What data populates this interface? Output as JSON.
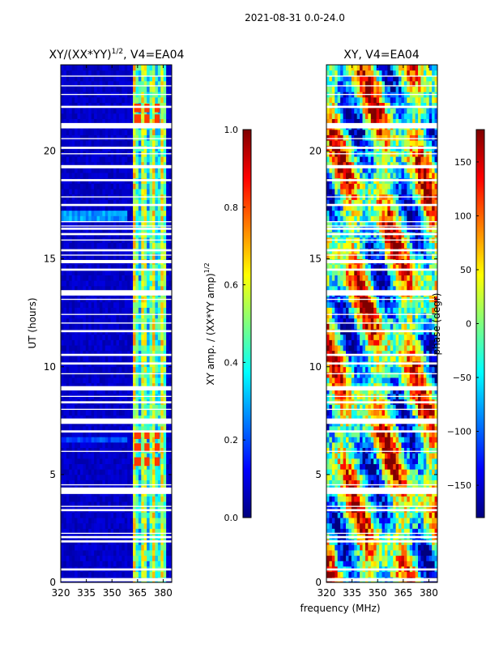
{
  "suptitle": "2021-08-31 0.0-24.0",
  "chart_data": [
    {
      "type": "heatmap",
      "title_main": "XY/(XX*YY)",
      "title_sup": "1/2",
      "title_rest": ", V4=EA04",
      "ylabel": "UT (hours)",
      "xlim": [
        320,
        385
      ],
      "ylim": [
        0,
        24
      ],
      "xticks": [
        "320",
        "335",
        "350",
        "365",
        "380"
      ],
      "xtick_values": [
        320,
        335,
        350,
        365,
        380
      ],
      "yticks": [
        "0",
        "5",
        "10",
        "15",
        "20"
      ],
      "ytick_values": [
        0,
        5,
        10,
        15,
        20
      ],
      "colorbar": {
        "label_main": "XY amp. / (XX*YY amp)",
        "label_sup": "1/2",
        "range": [
          0.0,
          1.0
        ],
        "ticks": [
          "0.0",
          "0.2",
          "0.4",
          "0.6",
          "0.8",
          "1.0"
        ],
        "tick_values": [
          0.0,
          0.2,
          0.4,
          0.6,
          0.8,
          1.0
        ]
      }
    },
    {
      "type": "heatmap",
      "title": "XY, V4=EA04",
      "xlim": [
        320,
        385
      ],
      "ylim": [
        0,
        24
      ],
      "xticks": [
        "320",
        "335",
        "350",
        "365",
        "380"
      ],
      "xtick_values": [
        320,
        335,
        350,
        365,
        380
      ],
      "yticks": [
        "0",
        "5",
        "10",
        "15",
        "20"
      ],
      "ytick_values": [
        0,
        5,
        10,
        15,
        20
      ],
      "colorbar": {
        "label": "phase (degr)",
        "range": [
          -180,
          180
        ],
        "ticks": [
          "−150",
          "−100",
          "−50",
          "0",
          "50",
          "100",
          "150"
        ],
        "tick_values": [
          -150,
          -100,
          -50,
          0,
          50,
          100,
          150
        ]
      }
    }
  ],
  "xlabel_shared": "frequency (MHz)",
  "colormap": [
    "#00007f",
    "#0000ff",
    "#007fff",
    "#00ffff",
    "#7fff7f",
    "#ffff00",
    "#ff7f00",
    "#ff0000",
    "#7f0000"
  ],
  "flagged_bands_hours": [
    [
      0.05,
      0.2
    ],
    [
      0.55,
      0.65
    ],
    [
      1.85,
      1.95
    ],
    [
      2.05,
      2.15
    ],
    [
      2.25,
      2.3
    ],
    [
      3.3,
      3.4
    ],
    [
      3.5,
      3.55
    ],
    [
      4.1,
      4.4
    ],
    [
      4.5,
      4.55
    ],
    [
      6.05,
      6.1
    ],
    [
      6.95,
      7.05
    ],
    [
      7.35,
      7.6
    ],
    [
      8.0,
      8.05
    ],
    [
      8.3,
      8.4
    ],
    [
      8.6,
      8.65
    ],
    [
      8.9,
      9.1
    ],
    [
      9.65,
      9.7
    ],
    [
      10.1,
      10.2
    ],
    [
      10.5,
      10.6
    ],
    [
      11.6,
      11.7
    ],
    [
      12.0,
      12.05
    ],
    [
      12.4,
      12.45
    ],
    [
      13.1,
      13.15
    ],
    [
      13.3,
      13.55
    ],
    [
      14.45,
      14.55
    ],
    [
      14.8,
      14.95
    ],
    [
      15.15,
      15.2
    ],
    [
      15.35,
      15.45
    ],
    [
      15.85,
      15.9
    ],
    [
      16.1,
      16.2
    ],
    [
      16.35,
      16.45
    ],
    [
      16.5,
      16.55
    ],
    [
      16.7,
      16.75
    ],
    [
      17.45,
      17.55
    ],
    [
      17.85,
      17.9
    ],
    [
      18.6,
      18.7
    ],
    [
      19.2,
      19.35
    ],
    [
      19.85,
      19.9
    ],
    [
      20.1,
      20.2
    ],
    [
      20.55,
      20.6
    ],
    [
      21.05,
      21.3
    ],
    [
      22.0,
      22.1
    ],
    [
      22.6,
      22.65
    ],
    [
      23.0,
      23.05
    ],
    [
      23.45,
      23.5
    ]
  ],
  "amp_hotspots": [
    {
      "freq": [
        363,
        367
      ],
      "hours": [
        5.4,
        5.8
      ]
    },
    {
      "freq": [
        369,
        372
      ],
      "hours": [
        5.4,
        5.8
      ]
    },
    {
      "freq": [
        375,
        378
      ],
      "hours": [
        5.4,
        5.8
      ]
    },
    {
      "freq": [
        363,
        367
      ],
      "hours": [
        6.05,
        6.45
      ]
    },
    {
      "freq": [
        369,
        372
      ],
      "hours": [
        6.05,
        6.45
      ]
    },
    {
      "freq": [
        375,
        378
      ],
      "hours": [
        6.05,
        6.45
      ]
    },
    {
      "freq": [
        363,
        367
      ],
      "hours": [
        6.65,
        7.05
      ]
    },
    {
      "freq": [
        369,
        372
      ],
      "hours": [
        6.65,
        7.05
      ]
    },
    {
      "freq": [
        375,
        378
      ],
      "hours": [
        6.65,
        7.05
      ]
    },
    {
      "freq": [
        363,
        367
      ],
      "hours": [
        21.3,
        21.7
      ]
    },
    {
      "freq": [
        369,
        372
      ],
      "hours": [
        21.3,
        21.7
      ]
    },
    {
      "freq": [
        375,
        378
      ],
      "hours": [
        21.3,
        21.7
      ]
    },
    {
      "freq": [
        363,
        367
      ],
      "hours": [
        21.8,
        22.2
      ]
    },
    {
      "freq": [
        369,
        372
      ],
      "hours": [
        21.8,
        22.2
      ]
    },
    {
      "freq": [
        375,
        378
      ],
      "hours": [
        21.8,
        22.2
      ]
    }
  ]
}
